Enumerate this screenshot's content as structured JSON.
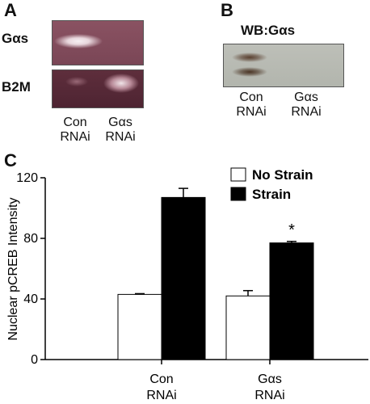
{
  "panel_a": {
    "letter": "A",
    "rows": [
      {
        "label": "Gαs"
      },
      {
        "label": "B2M"
      }
    ],
    "lanes": [
      {
        "line1": "Con",
        "line2": "RNAi"
      },
      {
        "line1": "Gαs",
        "line2": "RNAi"
      }
    ]
  },
  "panel_b": {
    "letter": "B",
    "title": "WB:Gαs",
    "lanes": [
      {
        "line1": "Con",
        "line2": "RNAi"
      },
      {
        "line1": "Gαs",
        "line2": "RNAi"
      }
    ]
  },
  "panel_c": {
    "letter": "C"
  },
  "colors": {
    "gel_bg": "#6e3a4a",
    "band": "#f4eef0",
    "wb_bg": "#b9bcb4",
    "wb_band": "#4a3a2a",
    "bar_strain": "#000000",
    "bar_nostrain": "#ffffff"
  },
  "chart_data": {
    "type": "bar",
    "title": "",
    "xlabel": "",
    "ylabel": "Nuclear pCREB Intensity",
    "ylim": [
      0,
      120
    ],
    "yticks": [
      0,
      40,
      80,
      120
    ],
    "categories": [
      "Con\nRNAi",
      "Gαs\nRNAi"
    ],
    "series": [
      {
        "name": "No Strain",
        "values": [
          43,
          42
        ],
        "errors": [
          0.5,
          3.5
        ],
        "color": "#ffffff"
      },
      {
        "name": "Strain",
        "values": [
          107,
          77
        ],
        "errors": [
          6,
          1
        ],
        "color": "#000000"
      }
    ],
    "annotations": [
      {
        "category_index": 1,
        "series_index": 1,
        "text": "*"
      }
    ],
    "legend_position": "top-right"
  }
}
